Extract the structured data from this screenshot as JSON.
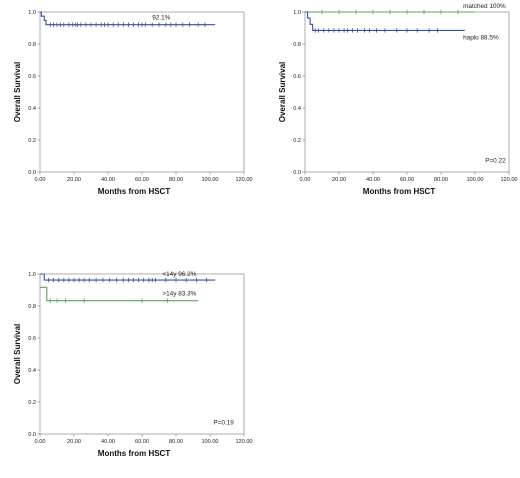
{
  "chart_data": [
    {
      "type": "line",
      "xlabel": "Months from HSCT",
      "ylabel": "Overall Survival",
      "xlim": [
        0,
        120
      ],
      "ylim": [
        0,
        1
      ],
      "xticks": [
        "0.00",
        "20.00",
        "40.00",
        "60.00",
        "80.00",
        "100.00",
        "120.00"
      ],
      "yticks": [
        "0.0",
        "0.2",
        "0.4",
        "0.6",
        "0.8",
        "1.0"
      ],
      "series": [
        {
          "color": "#3a4f9c",
          "label": "92.1%",
          "steps": [
            [
              0,
              1.0
            ],
            [
              0.8,
              0.974
            ],
            [
              2.5,
              0.947
            ],
            [
              3.5,
              0.921
            ],
            [
              103,
              0.921
            ]
          ],
          "censored_x": [
            6,
            8,
            10,
            12,
            14,
            17,
            19,
            21,
            22,
            24,
            27,
            30,
            33,
            36,
            38,
            40,
            43,
            46,
            49,
            52,
            55,
            58,
            60,
            62,
            66,
            70,
            74,
            77,
            80,
            84,
            88,
            93,
            97
          ]
        }
      ]
    },
    {
      "type": "line",
      "xlabel": "Months from HSCT",
      "ylabel": "Overall Survival",
      "xlim": [
        0,
        120
      ],
      "ylim": [
        0,
        1
      ],
      "xticks": [
        "0.00",
        "20.00",
        "40.00",
        "60.00",
        "80.00",
        "100.00",
        "120.00"
      ],
      "yticks": [
        "0.0",
        "0.2",
        "0.4",
        "0.6",
        "0.8",
        "1.0"
      ],
      "annotation": "P=0.22",
      "series": [
        {
          "color": "#5aa55a",
          "label": "matched 100%",
          "steps": [
            [
              0,
              1.0
            ],
            [
              100,
              1.0
            ]
          ],
          "censored_x": [
            10,
            20,
            30,
            40,
            50,
            60,
            70,
            80,
            90
          ]
        },
        {
          "color": "#3a4f9c",
          "label": "haplo 88.5%",
          "steps": [
            [
              0,
              1.0
            ],
            [
              1.5,
              0.962
            ],
            [
              3,
              0.923
            ],
            [
              4.5,
              0.885
            ],
            [
              94,
              0.885
            ]
          ],
          "censored_x": [
            6,
            8,
            11,
            14,
            17,
            20,
            23,
            25,
            28,
            31,
            35,
            38,
            42,
            47,
            54,
            60,
            66,
            73,
            78
          ]
        }
      ]
    },
    {
      "type": "line",
      "xlabel": "Months from HSCT",
      "ylabel": "Overall Survival",
      "xlim": [
        0,
        120
      ],
      "ylim": [
        0,
        1
      ],
      "xticks": [
        "0.00",
        "20.00",
        "40.00",
        "60.00",
        "80.00",
        "100.00",
        "120.00"
      ],
      "yticks": [
        "0.0",
        "0.2",
        "0.4",
        "0.6",
        "0.8",
        "1.0"
      ],
      "annotation": "P=0.19",
      "series": [
        {
          "color": "#3a4f9c",
          "label": "<14y 96.2%",
          "steps": [
            [
              0,
              1.0
            ],
            [
              2.5,
              0.962
            ],
            [
              103,
              0.962
            ]
          ],
          "censored_x": [
            5,
            8,
            11,
            14,
            17,
            20,
            23,
            26,
            29,
            33,
            37,
            41,
            45,
            49,
            52,
            55,
            58,
            61,
            64,
            66,
            68,
            74,
            80,
            86,
            92,
            98
          ]
        },
        {
          "color": "#5aa55a",
          "label": ">14y 83.3%",
          "steps": [
            [
              0,
              0.917
            ],
            [
              4,
              0.833
            ],
            [
              93,
              0.833
            ]
          ],
          "censored_x": [
            6,
            10,
            15,
            26,
            60,
            75
          ]
        }
      ]
    }
  ]
}
